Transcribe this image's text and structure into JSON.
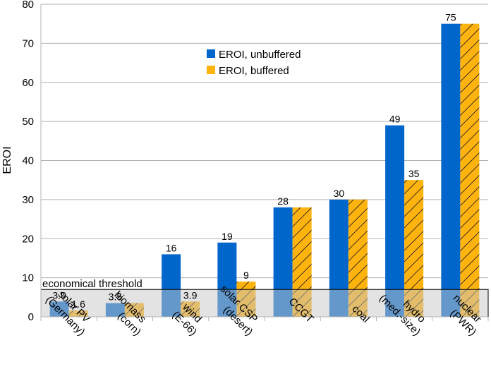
{
  "chart_data": {
    "type": "bar",
    "title": "",
    "xlabel": "",
    "ylabel": "EROI",
    "ylim": [
      0,
      80
    ],
    "yticks": [
      0,
      10,
      20,
      30,
      40,
      50,
      60,
      70,
      80
    ],
    "grid": true,
    "legend_position": "top-center",
    "categories": [
      [
        "solar PV",
        "(Germany)"
      ],
      [
        "biomass",
        "(corn)"
      ],
      [
        "wind",
        "(E-66)"
      ],
      [
        "solar CSP",
        "(desert)"
      ],
      [
        "CCGT"
      ],
      [
        "coal"
      ],
      [
        "hydro",
        "(med.-size)"
      ],
      [
        "nuclear",
        "(PWR)"
      ]
    ],
    "series": [
      {
        "name": "EROI, unbuffered",
        "color": "#0066cc",
        "pattern": "solid",
        "values": [
          3.9,
          3.5,
          16,
          19,
          28,
          30,
          49,
          75
        ],
        "labels": [
          "3.9",
          "3.5",
          "16",
          "19",
          "28",
          "30",
          "49",
          "75"
        ]
      },
      {
        "name": "EROI, buffered",
        "color": "#ffb30f",
        "pattern": "hatched",
        "values": [
          1.6,
          3.5,
          3.9,
          9,
          28,
          30,
          35,
          75
        ],
        "labels": [
          "1.6",
          "",
          "3.9",
          "9",
          "",
          "",
          "35",
          ""
        ]
      }
    ],
    "threshold": {
      "label": "economical threshold",
      "value": 7
    }
  }
}
